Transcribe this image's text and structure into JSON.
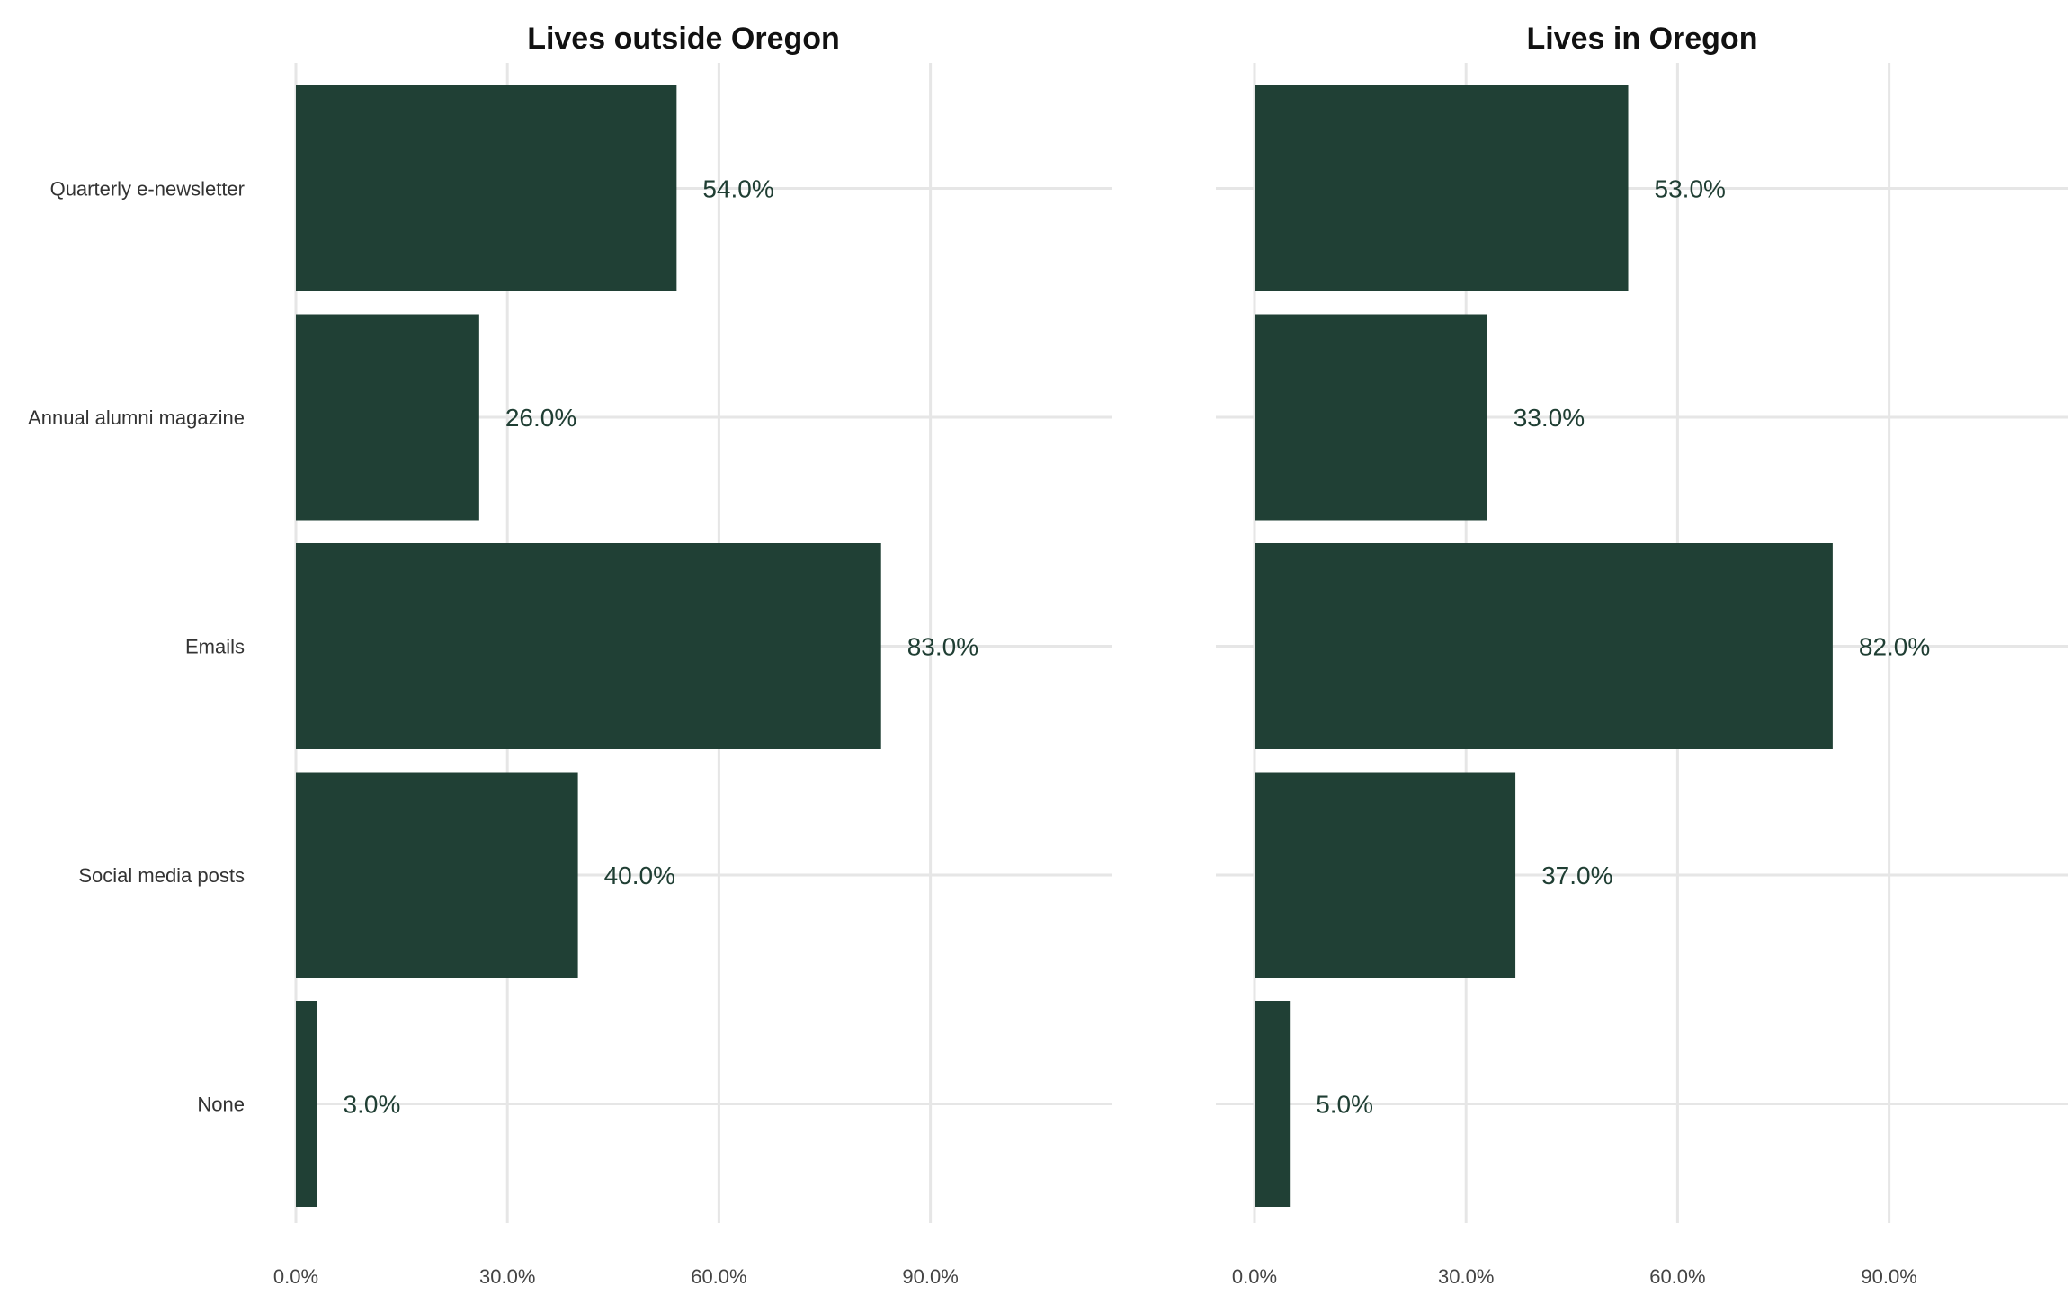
{
  "chart_data": {
    "type": "bar",
    "orientation": "horizontal",
    "bar_color": "#204035",
    "grid": true,
    "categories": [
      "Quarterly e-newsletter",
      "Annual alumni magazine",
      "Emails",
      "Social media posts",
      "None"
    ],
    "xlim": [
      0,
      115
    ],
    "x_ticks": [
      0,
      30,
      60,
      90
    ],
    "x_tick_labels": [
      "0.0%",
      "30.0%",
      "60.0%",
      "90.0%"
    ],
    "panels": [
      {
        "title": "Lives outside Oregon",
        "values": [
          54,
          26,
          83,
          40,
          3
        ],
        "value_labels": [
          "54.0%",
          "26.0%",
          "83.0%",
          "40.0%",
          "3.0%"
        ]
      },
      {
        "title": "Lives in Oregon",
        "values": [
          53,
          33,
          82,
          37,
          5
        ],
        "value_labels": [
          "53.0%",
          "33.0%",
          "82.0%",
          "37.0%",
          "5.0%"
        ]
      }
    ]
  }
}
